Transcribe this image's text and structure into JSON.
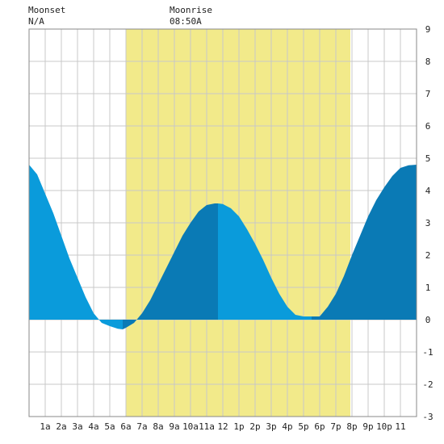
{
  "header": {
    "moonset": {
      "label": "Moonset",
      "value": "N/A"
    },
    "moonrise": {
      "label": "Moonrise",
      "value": "08:50A"
    }
  },
  "chart_data": {
    "type": "area",
    "title": "",
    "xlabel": "",
    "ylabel": "",
    "x_unit": "hours since midnight",
    "xlim": [
      0,
      24
    ],
    "ylim": [
      -3,
      9
    ],
    "grid": true,
    "y_axis_side": "right",
    "x_ticks": [
      {
        "x": 1,
        "label": "1a"
      },
      {
        "x": 2,
        "label": "2a"
      },
      {
        "x": 3,
        "label": "3a"
      },
      {
        "x": 4,
        "label": "4a"
      },
      {
        "x": 5,
        "label": "5a"
      },
      {
        "x": 6,
        "label": "6a"
      },
      {
        "x": 7,
        "label": "7a"
      },
      {
        "x": 8,
        "label": "8a"
      },
      {
        "x": 9,
        "label": "9a"
      },
      {
        "x": 10,
        "label": "10a"
      },
      {
        "x": 11,
        "label": "11a"
      },
      {
        "x": 12,
        "label": "12"
      },
      {
        "x": 13,
        "label": "1p"
      },
      {
        "x": 14,
        "label": "2p"
      },
      {
        "x": 15,
        "label": "3p"
      },
      {
        "x": 16,
        "label": "4p"
      },
      {
        "x": 17,
        "label": "5p"
      },
      {
        "x": 18,
        "label": "6p"
      },
      {
        "x": 19,
        "label": "7p"
      },
      {
        "x": 20,
        "label": "8p"
      },
      {
        "x": 21,
        "label": "9p"
      },
      {
        "x": 22,
        "label": "10p"
      },
      {
        "x": 23,
        "label": "11"
      }
    ],
    "y_ticks": [
      -3,
      -2,
      -1,
      0,
      1,
      2,
      3,
      4,
      5,
      6,
      7,
      8,
      9
    ],
    "daylight": {
      "start": 6.0,
      "end": 19.9,
      "color": "#f2ea8a"
    },
    "colors": {
      "tide_light": "#0a9bdb",
      "tide_dark": "#0a7ab5",
      "grid": "#c8c8c8"
    },
    "tide_extremes": [
      {
        "x": 5.8,
        "y": -0.3,
        "kind": "low"
      },
      {
        "x": 11.7,
        "y": 3.6,
        "kind": "high"
      },
      {
        "x": 17.5,
        "y": 0.1,
        "kind": "low"
      },
      {
        "x": 24.0,
        "y": 4.8,
        "kind": "high"
      }
    ],
    "series": [
      {
        "x": [
          0,
          0.5,
          1,
          1.5,
          2,
          2.5,
          3,
          3.5,
          4,
          4.5,
          5,
          5.5,
          5.8,
          6,
          6.5,
          7,
          7.5,
          8,
          8.5,
          9,
          9.5,
          10,
          10.5,
          11,
          11.5,
          11.7,
          12,
          12.5,
          13,
          13.5,
          14,
          14.5,
          15,
          15.5,
          16,
          16.5,
          17,
          17.5,
          18,
          18.5,
          19,
          19.5,
          20,
          20.5,
          21,
          21.5,
          22,
          22.5,
          23,
          23.5,
          24
        ],
        "y": [
          4.8,
          4.5,
          3.9,
          3.3,
          2.6,
          1.9,
          1.3,
          0.7,
          0.2,
          -0.1,
          -0.2,
          -0.28,
          -0.3,
          -0.25,
          -0.1,
          0.2,
          0.6,
          1.1,
          1.6,
          2.1,
          2.6,
          3.0,
          3.35,
          3.55,
          3.6,
          3.6,
          3.58,
          3.45,
          3.2,
          2.8,
          2.35,
          1.85,
          1.3,
          0.8,
          0.4,
          0.15,
          0.1,
          0.1,
          0.1,
          0.4,
          0.8,
          1.35,
          2.0,
          2.6,
          3.2,
          3.7,
          4.1,
          4.45,
          4.7,
          4.78,
          4.8
        ]
      }
    ]
  }
}
